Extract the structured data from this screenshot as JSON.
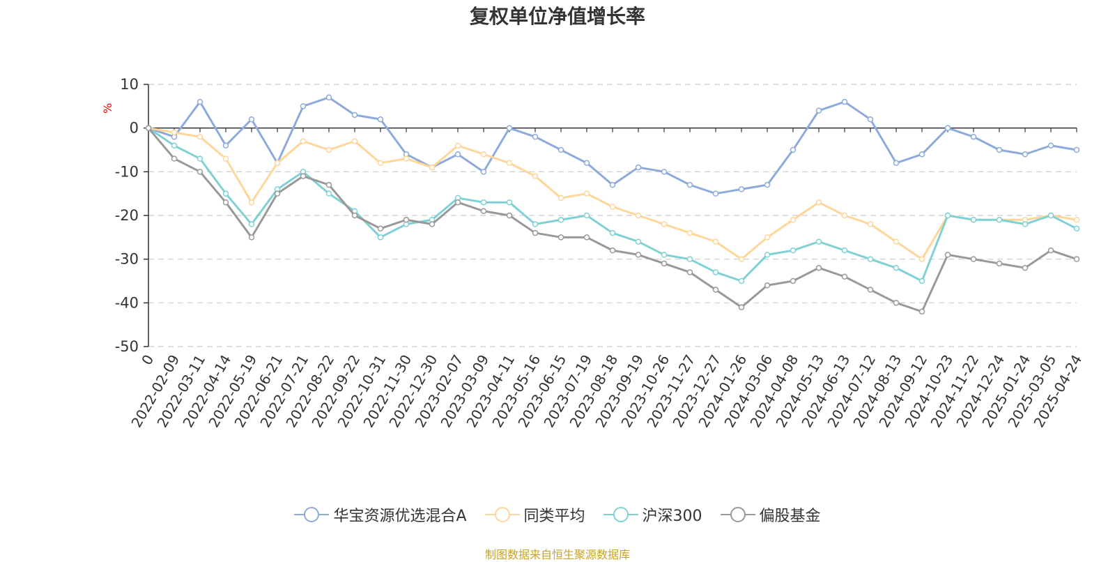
{
  "colors": {
    "fund": "#8eaadb",
    "peer": "#ffd699",
    "hs300": "#7fd1d4",
    "equity": "#999999",
    "axis": "#333333",
    "grid": "#cccccc",
    "unit": "#ff0000",
    "source": "#c9a227"
  },
  "source_note": "制图数据来自恒生聚源数据库",
  "chart_data": {
    "type": "line",
    "title": "复权单位净值增长率",
    "ylabel": "%",
    "xlabel": "",
    "ylim": [
      -50,
      10
    ],
    "yticks": [
      10,
      0,
      -10,
      -20,
      -30,
      -40,
      -50
    ],
    "grid": true,
    "legend_position": "bottom-center",
    "categories": [
      "0",
      "2022-02-09",
      "2022-03-11",
      "2022-04-14",
      "2022-05-19",
      "2022-06-21",
      "2022-07-21",
      "2022-08-22",
      "2022-09-22",
      "2022-10-31",
      "2022-11-30",
      "2022-12-30",
      "2023-02-07",
      "2023-03-09",
      "2023-04-11",
      "2023-05-16",
      "2023-06-15",
      "2023-07-19",
      "2023-08-18",
      "2023-09-19",
      "2023-10-26",
      "2023-11-27",
      "2023-12-27",
      "2024-01-26",
      "2024-03-06",
      "2024-04-08",
      "2024-05-13",
      "2024-06-13",
      "2024-07-12",
      "2024-08-13",
      "2024-09-12",
      "2024-10-23",
      "2024-11-22",
      "2024-12-24",
      "2025-01-24",
      "2025-03-05",
      "2025-04-24"
    ],
    "series": [
      {
        "name": "华宝资源优选混合A",
        "color_key": "fund",
        "values": [
          0,
          -2,
          6,
          -4,
          2,
          -8,
          5,
          7,
          3,
          2,
          -6,
          -9,
          -6,
          -10,
          0,
          -2,
          -5,
          -8,
          -13,
          -9,
          -10,
          -13,
          -15,
          -14,
          -13,
          -5,
          4,
          6,
          2,
          -8,
          -6,
          0,
          -2,
          -5,
          -6,
          -4,
          -5
        ]
      },
      {
        "name": "同类平均",
        "color_key": "peer",
        "values": [
          0,
          -1,
          -2,
          -7,
          -17,
          -8,
          -3,
          -5,
          -3,
          -8,
          -7,
          -9,
          -4,
          -6,
          -8,
          -11,
          -16,
          -15,
          -18,
          -20,
          -22,
          -24,
          -26,
          -30,
          -25,
          -21,
          -17,
          -20,
          -22,
          -26,
          -30,
          -20,
          -21,
          -21,
          -21,
          -20,
          -21
        ]
      },
      {
        "name": "沪深300",
        "color_key": "hs300",
        "values": [
          0,
          -4,
          -7,
          -15,
          -22,
          -14,
          -10,
          -15,
          -19,
          -25,
          -22,
          -21,
          -16,
          -17,
          -17,
          -22,
          -21,
          -20,
          -24,
          -26,
          -29,
          -30,
          -33,
          -35,
          -29,
          -28,
          -26,
          -28,
          -30,
          -32,
          -35,
          -20,
          -21,
          -21,
          -22,
          -20,
          -23
        ]
      },
      {
        "name": "偏股基金",
        "color_key": "equity",
        "values": [
          0,
          -7,
          -10,
          -17,
          -25,
          -15,
          -11,
          -13,
          -20,
          -23,
          -21,
          -22,
          -17,
          -19,
          -20,
          -24,
          -25,
          -25,
          -28,
          -29,
          -31,
          -33,
          -37,
          -41,
          -36,
          -35,
          -32,
          -34,
          -37,
          -40,
          -42,
          -29,
          -30,
          -31,
          -32,
          -28,
          -30
        ]
      }
    ]
  }
}
